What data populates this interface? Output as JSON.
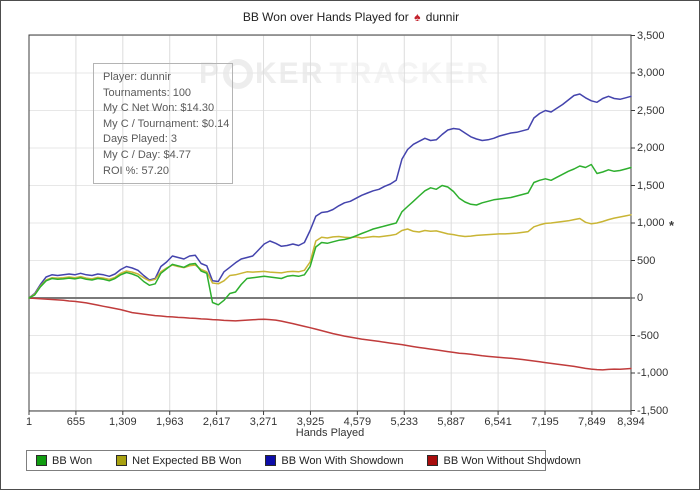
{
  "window": {
    "title_prefix": "BB Won over Hands Played for",
    "title_player": "dunnir",
    "title_suit_icon": "spade",
    "background": "#ffffff"
  },
  "watermark": {
    "part1": "P",
    "part2": "KER",
    "part3": "TRACKER",
    "chip_icon": "poker-chip",
    "color": "#ededed"
  },
  "info_box": {
    "lines": [
      {
        "label": "Player",
        "value": "dunnir"
      },
      {
        "label": "Tournaments",
        "value": "100"
      },
      {
        "label": "My C Net Won",
        "value": "$14.30"
      },
      {
        "label": "My C / Tournament",
        "value": "$0.14"
      },
      {
        "label": "Days Played",
        "value": "3"
      },
      {
        "label": "My C / Day",
        "value": "$4.77"
      },
      {
        "label": "ROI %",
        "value": "57.20"
      }
    ]
  },
  "axes": {
    "xlabel": "Hands Played",
    "x_tick_labels": [
      "1",
      "655",
      "1,309",
      "1,963",
      "2,617",
      "3,271",
      "3,925",
      "4,579",
      "5,233",
      "5,887",
      "6,541",
      "7,195",
      "7,849",
      "8,394"
    ],
    "x_tick_values": [
      1,
      655,
      1309,
      1963,
      2617,
      3271,
      3925,
      4579,
      5233,
      5887,
      6541,
      7195,
      7849,
      8394
    ],
    "y_tick_labels": [
      "3,500",
      "3,000",
      "2,500",
      "2,000",
      "1,500",
      "1,000",
      "500",
      "0",
      "-500",
      "-1,000",
      "-1,500"
    ],
    "y_tick_values": [
      3500,
      3000,
      2500,
      2000,
      1500,
      1000,
      500,
      0,
      -500,
      -1000,
      -1500
    ],
    "y_marker_symbol": "*",
    "y_marker_value": 1000
  },
  "colors": {
    "zero_line": "#7a7a7a",
    "grid_vertical": "#dcdcdc",
    "grid_horizontal": "#e7e7e7",
    "plot_border": "#3c3c3c"
  },
  "legend": [
    {
      "label": "BB Won",
      "swatch_color": "#119c11"
    },
    {
      "label": "Net Expected BB Won",
      "swatch_color": "#a8a111"
    },
    {
      "label": "BB Won With Showdown",
      "swatch_color": "#0d0da8"
    },
    {
      "label": "BB Won Without Showdown",
      "swatch_color": "#a80d0d"
    }
  ],
  "chart_data": {
    "type": "line",
    "title": "BB Won over Hands Played for dunnir",
    "xlabel": "Hands Played",
    "ylabel": "",
    "xlim": [
      1,
      8394
    ],
    "ylim": [
      -1500,
      3500
    ],
    "grid": true,
    "legend_position": "bottom",
    "x": [
      1,
      80,
      160,
      240,
      320,
      400,
      480,
      560,
      640,
      720,
      800,
      880,
      960,
      1040,
      1120,
      1200,
      1280,
      1360,
      1440,
      1520,
      1600,
      1680,
      1760,
      1840,
      1920,
      2000,
      2080,
      2160,
      2240,
      2320,
      2400,
      2480,
      2560,
      2640,
      2720,
      2800,
      2880,
      2960,
      3040,
      3120,
      3200,
      3280,
      3360,
      3440,
      3520,
      3600,
      3680,
      3760,
      3840,
      3920,
      4000,
      4080,
      4160,
      4240,
      4320,
      4400,
      4480,
      4560,
      4640,
      4720,
      4800,
      4880,
      4960,
      5040,
      5120,
      5200,
      5280,
      5360,
      5440,
      5520,
      5600,
      5680,
      5760,
      5840,
      5920,
      6000,
      6080,
      6160,
      6240,
      6320,
      6400,
      6480,
      6560,
      6640,
      6720,
      6800,
      6880,
      6960,
      7040,
      7120,
      7200,
      7280,
      7360,
      7440,
      7520,
      7600,
      7680,
      7760,
      7840,
      7920,
      8000,
      8080,
      8160,
      8240,
      8320,
      8394
    ],
    "series": [
      {
        "name": "BB Won",
        "line_color": "#2eaf2e",
        "values": [
          0,
          40,
          150,
          230,
          260,
          250,
          255,
          265,
          255,
          270,
          250,
          240,
          260,
          250,
          230,
          260,
          310,
          340,
          320,
          290,
          220,
          170,
          190,
          330,
          390,
          450,
          430,
          410,
          450,
          460,
          360,
          330,
          -60,
          -90,
          -30,
          60,
          80,
          180,
          260,
          270,
          280,
          290,
          280,
          270,
          260,
          290,
          300,
          290,
          310,
          420,
          680,
          740,
          730,
          750,
          770,
          780,
          800,
          830,
          860,
          890,
          920,
          940,
          960,
          980,
          1000,
          1150,
          1220,
          1290,
          1360,
          1430,
          1470,
          1450,
          1500,
          1480,
          1420,
          1330,
          1280,
          1250,
          1240,
          1270,
          1290,
          1310,
          1320,
          1330,
          1340,
          1360,
          1380,
          1400,
          1540,
          1570,
          1590,
          1570,
          1610,
          1650,
          1690,
          1720,
          1760,
          1740,
          1780,
          1660,
          1680,
          1710,
          1690,
          1700,
          1720,
          1740
        ]
      },
      {
        "name": "Net Expected BB Won",
        "line_color": "#c9b535",
        "values": [
          0,
          50,
          160,
          240,
          270,
          265,
          270,
          280,
          270,
          285,
          265,
          255,
          275,
          265,
          250,
          275,
          330,
          360,
          345,
          320,
          270,
          230,
          250,
          350,
          400,
          440,
          420,
          405,
          430,
          440,
          380,
          350,
          200,
          190,
          230,
          300,
          310,
          330,
          350,
          345,
          350,
          355,
          345,
          340,
          335,
          350,
          355,
          350,
          370,
          480,
          760,
          810,
          800,
          815,
          820,
          810,
          805,
          815,
          800,
          810,
          820,
          815,
          825,
          835,
          850,
          900,
          920,
          890,
          880,
          900,
          890,
          895,
          875,
          855,
          845,
          830,
          820,
          825,
          835,
          840,
          845,
          850,
          855,
          855,
          860,
          865,
          875,
          885,
          950,
          975,
          995,
          1000,
          1010,
          1020,
          1030,
          1045,
          1060,
          1010,
          990,
          1000,
          1020,
          1045,
          1065,
          1080,
          1095,
          1110
        ]
      },
      {
        "name": "BB Won With Showdown",
        "line_color": "#4444ad",
        "values": [
          0,
          60,
          180,
          280,
          310,
          300,
          310,
          320,
          310,
          330,
          310,
          300,
          320,
          310,
          290,
          320,
          380,
          420,
          400,
          370,
          300,
          240,
          260,
          420,
          480,
          560,
          540,
          520,
          560,
          570,
          460,
          430,
          230,
          220,
          350,
          410,
          470,
          520,
          540,
          560,
          640,
          720,
          760,
          730,
          690,
          700,
          720,
          700,
          740,
          900,
          1090,
          1140,
          1150,
          1180,
          1230,
          1270,
          1290,
          1330,
          1370,
          1400,
          1430,
          1450,
          1490,
          1520,
          1570,
          1850,
          1980,
          2050,
          2090,
          2130,
          2100,
          2110,
          2180,
          2240,
          2260,
          2250,
          2200,
          2150,
          2120,
          2100,
          2110,
          2130,
          2160,
          2180,
          2200,
          2210,
          2230,
          2250,
          2400,
          2460,
          2500,
          2480,
          2530,
          2580,
          2640,
          2700,
          2720,
          2670,
          2630,
          2610,
          2660,
          2690,
          2660,
          2650,
          2670,
          2690
        ]
      },
      {
        "name": "BB Won Without Showdown",
        "line_color": "#c03c3c",
        "values": [
          0,
          -5,
          -10,
          -15,
          -20,
          -25,
          -30,
          -40,
          -45,
          -55,
          -65,
          -80,
          -95,
          -110,
          -125,
          -140,
          -155,
          -175,
          -195,
          -205,
          -215,
          -225,
          -235,
          -240,
          -248,
          -252,
          -258,
          -262,
          -268,
          -272,
          -278,
          -282,
          -288,
          -292,
          -298,
          -302,
          -305,
          -300,
          -295,
          -290,
          -286,
          -284,
          -288,
          -295,
          -308,
          -325,
          -342,
          -360,
          -378,
          -396,
          -415,
          -435,
          -455,
          -475,
          -492,
          -508,
          -522,
          -535,
          -548,
          -558,
          -568,
          -578,
          -590,
          -602,
          -612,
          -622,
          -635,
          -648,
          -660,
          -670,
          -682,
          -692,
          -704,
          -715,
          -726,
          -736,
          -742,
          -750,
          -760,
          -770,
          -778,
          -786,
          -792,
          -798,
          -804,
          -812,
          -820,
          -830,
          -840,
          -850,
          -862,
          -872,
          -882,
          -892,
          -902,
          -912,
          -925,
          -938,
          -948,
          -955,
          -958,
          -952,
          -948,
          -950,
          -945,
          -940
        ]
      }
    ]
  }
}
